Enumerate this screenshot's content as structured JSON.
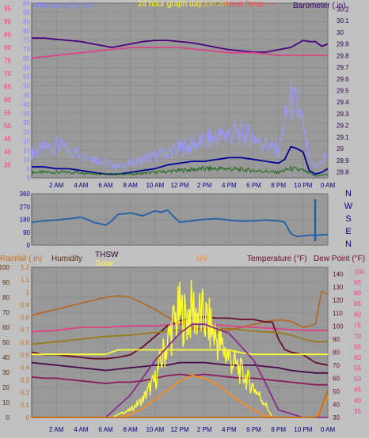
{
  "chart_data": [
    {
      "type": "line",
      "title": "24 hour graph day",
      "title_fragment": "Jun 2n",
      "legend_fragment": "Heat Temp. ---",
      "left_axis_label": "Windspeed (mph)",
      "right_axis_label": "Barometer (.in)",
      "x_ticks": [
        "2 AM",
        "4 AM",
        "6 AM",
        "8 AM",
        "10 AM",
        "12 PM",
        "2 PM",
        "4 PM",
        "6 PM",
        "8 PM",
        "10 PM",
        "0 AM"
      ],
      "x_range_hours": [
        0,
        24
      ],
      "left_ticks": [
        "0",
        "5",
        "10",
        "15",
        "20",
        "25",
        "30",
        "35",
        "40",
        "45",
        "50",
        "55",
        "60",
        "65",
        "70",
        "75",
        "80",
        "85",
        "90",
        "95"
      ],
      "left_ylim": [
        0,
        95
      ],
      "outer_left_ticks": [
        "35",
        "40",
        "45",
        "50",
        "55",
        "60",
        "65",
        "70",
        "75",
        "80",
        "85",
        "90",
        "95"
      ],
      "outer_left_ylim": [
        30,
        97
      ],
      "right_ticks": [
        "28.8",
        "28.9",
        "29",
        "29.1",
        "29.2",
        "29.3",
        "29.4",
        "29.5",
        "29.6",
        "29.7",
        "29.8",
        "29.9",
        "30",
        "30.1",
        "30.2"
      ],
      "right_ylim": [
        28.75,
        30.25
      ],
      "grid": true,
      "series": [
        {
          "name": "Barometer",
          "axis": "right",
          "color": "#4b0082",
          "x": [
            0,
            1,
            2,
            3,
            4,
            5,
            6,
            6.5,
            7,
            8,
            9,
            10,
            11,
            12,
            13,
            14,
            15,
            16,
            17,
            18,
            19,
            20,
            21,
            21.5,
            22,
            22.5,
            23,
            23.5,
            24
          ],
          "y": [
            29.95,
            29.95,
            29.94,
            29.93,
            29.92,
            29.9,
            29.88,
            29.87,
            29.88,
            29.9,
            29.92,
            29.93,
            29.93,
            29.92,
            29.91,
            29.89,
            29.87,
            29.85,
            29.84,
            29.83,
            29.83,
            29.85,
            29.87,
            29.9,
            29.93,
            29.92,
            29.92,
            29.88,
            29.9
          ]
        },
        {
          "name": "",
          "axis": "outer_left",
          "color": "#d8458a",
          "x": [
            0,
            2,
            4,
            6,
            8,
            10,
            12,
            14,
            16,
            18,
            20,
            22,
            24
          ],
          "y": [
            76,
            77,
            78,
            79,
            80,
            80,
            80,
            79,
            78,
            78,
            77,
            77,
            77
          ]
        },
        {
          "name": "Wind Gust",
          "axis": "left",
          "color": "#9999ff",
          "style": "noisy",
          "x": [
            0,
            1,
            2,
            3,
            4,
            5,
            6,
            7,
            8,
            9,
            10,
            11,
            12,
            13,
            14,
            15,
            16,
            17,
            18,
            19,
            20,
            20.5,
            21,
            21.5,
            22,
            22.5,
            23,
            23.5,
            24
          ],
          "y": [
            14,
            16,
            18,
            15,
            13,
            11,
            8,
            6,
            8,
            10,
            12,
            14,
            16,
            18,
            20,
            22,
            24,
            24,
            22,
            18,
            14,
            30,
            42,
            38,
            28,
            10,
            6,
            8,
            14
          ]
        },
        {
          "name": "Wind Speed",
          "axis": "left",
          "color": "#000099",
          "x": [
            0,
            1,
            2,
            3,
            4,
            5,
            6,
            7,
            8,
            9,
            10,
            11,
            12,
            13,
            14,
            15,
            16,
            17,
            18,
            19,
            20,
            20.5,
            21,
            21.5,
            22,
            22.5,
            23,
            23.5,
            24
          ],
          "y": [
            6,
            6,
            5,
            5,
            4,
            3,
            2,
            2,
            3,
            4,
            5,
            7,
            8,
            9,
            9,
            10,
            11,
            11,
            10,
            9,
            8,
            10,
            17,
            16,
            14,
            4,
            2,
            3,
            5
          ]
        },
        {
          "name": "Wind Avg",
          "axis": "left",
          "color": "#1e6b1e",
          "style": "noisy",
          "x": [
            0,
            2,
            4,
            6,
            8,
            10,
            12,
            14,
            16,
            18,
            20,
            21,
            22,
            23,
            24
          ],
          "y": [
            3,
            3,
            3,
            2,
            2,
            3,
            4,
            5,
            5,
            4,
            3,
            5,
            4,
            1,
            2
          ]
        }
      ]
    },
    {
      "type": "line",
      "title": "",
      "y_ticks": [
        "360",
        "270",
        "180",
        "90",
        "0"
      ],
      "ylim": [
        0,
        360
      ],
      "right_labels": [
        "N",
        "W",
        "S",
        "E",
        "N"
      ],
      "x_range_hours": [
        0,
        24
      ],
      "series": [
        {
          "name": "Wind Direction",
          "color": "#1f5fa8",
          "x": [
            0,
            1,
            2,
            3,
            4,
            4.5,
            5,
            6,
            6.5,
            7,
            8,
            9,
            10,
            10.5,
            11,
            11.5,
            12,
            13,
            14,
            15,
            16,
            17,
            18,
            19,
            20,
            20.5,
            21,
            21.5,
            22,
            22.5,
            23,
            24
          ],
          "y": [
            160,
            170,
            175,
            185,
            195,
            180,
            160,
            140,
            170,
            215,
            225,
            205,
            240,
            230,
            245,
            200,
            160,
            170,
            180,
            185,
            175,
            168,
            170,
            175,
            170,
            160,
            80,
            60,
            65,
            70,
            68,
            75
          ]
        }
      ]
    },
    {
      "type": "line",
      "title": "",
      "legend": [
        "Rainfall (.in)",
        "Humidity",
        "THSW",
        "Solar",
        "UV",
        "Temperature (°F)",
        "Dew Point (°F)"
      ],
      "x_ticks": [
        "2 AM",
        "4 AM",
        "6 AM",
        "8 AM",
        "10 AM",
        "12 PM",
        "2 PM",
        "4 PM",
        "6 PM",
        "8 PM",
        "10 PM",
        "0 AM"
      ],
      "x_range_hours": [
        0,
        24
      ],
      "left_outer_ticks": [
        "0",
        "10",
        "20",
        "30",
        "40",
        "50",
        "60",
        "70",
        "80",
        "90",
        "100"
      ],
      "left_outer_ylim": [
        0,
        100
      ],
      "left_inner_ticks": [
        "0",
        "0.1",
        "0.2",
        "0.3",
        "0.4",
        "0.5",
        "0.6",
        "0.7",
        "0.8",
        "0.9",
        "1",
        "1.1",
        "1.2"
      ],
      "left_inner_ylim": [
        0,
        1.2
      ],
      "right_inner_ticks": [
        "30",
        "40",
        "50",
        "60",
        "70",
        "80",
        "90",
        "100",
        "110",
        "120",
        "130",
        "140"
      ],
      "right_inner_ylim": [
        30,
        145
      ],
      "right_outer_ticks": [
        "35",
        "40",
        "45",
        "50",
        "55",
        "60",
        "65",
        "70",
        "75",
        "80",
        "85",
        "90",
        "95",
        "100"
      ],
      "right_outer_ylim": [
        32,
        102
      ],
      "grid": true,
      "series": [
        {
          "name": "Humidity",
          "axis": "left_outer",
          "color": "#b06a2a",
          "x": [
            0,
            1,
            2,
            3,
            4,
            5,
            6,
            7,
            8,
            9,
            10,
            11,
            12,
            12.5,
            13,
            14,
            15,
            16,
            17,
            18,
            19,
            20,
            21,
            22,
            23,
            23.5,
            24
          ],
          "y": [
            68,
            70,
            72,
            74,
            76,
            78,
            80,
            81,
            80,
            76,
            72,
            67,
            62,
            64,
            60,
            58,
            57,
            58,
            60,
            62,
            64,
            65,
            64,
            60,
            62,
            84,
            82
          ]
        },
        {
          "name": "",
          "axis": "left_outer",
          "color": "#e0408a",
          "x": [
            0,
            2,
            4,
            6,
            8,
            10,
            12,
            14,
            16,
            18,
            20,
            22,
            24
          ],
          "y": [
            57,
            58,
            60,
            60,
            61,
            61,
            62,
            62,
            61,
            60,
            59,
            58,
            58
          ]
        },
        {
          "name": "Temperature (°F)",
          "axis": "right_inner",
          "color": "#6b0a2a",
          "x": [
            0,
            1,
            2,
            3,
            4,
            5,
            6,
            7,
            8,
            9,
            10,
            11,
            12,
            13,
            14,
            15,
            16,
            17,
            18,
            19,
            19.5,
            20,
            20.5,
            21,
            22,
            23,
            24
          ],
          "y": [
            80,
            78,
            78,
            77,
            76,
            75,
            75,
            76,
            78,
            84,
            92,
            100,
            104,
            106,
            107,
            106,
            106,
            105,
            105,
            103,
            103,
            90,
            82,
            80,
            78,
            72,
            70
          ]
        },
        {
          "name": "THSW",
          "axis": "right_inner",
          "color": "#4a0a4a",
          "x": [
            0,
            1,
            2,
            3,
            4,
            5,
            6,
            7,
            8,
            9,
            10,
            11,
            12,
            13,
            14,
            15,
            16,
            17,
            18,
            19,
            20,
            21,
            22,
            23,
            24
          ],
          "y": [
            72,
            71,
            70,
            69,
            68,
            67,
            66,
            67,
            68,
            69,
            70,
            70,
            72,
            72,
            72,
            71,
            70,
            70,
            70,
            69,
            68,
            66,
            65,
            64,
            64
          ]
        },
        {
          "name": "Dew Point (°F)",
          "axis": "right_inner",
          "color": "#8a1a5a",
          "x": [
            0,
            1,
            2,
            3,
            4,
            5,
            6,
            7,
            8,
            9,
            10,
            11,
            12,
            13,
            14,
            15,
            16,
            17,
            18,
            19,
            20,
            21,
            22,
            23,
            24
          ],
          "y": [
            61,
            60,
            60,
            59,
            58,
            57,
            56,
            57,
            57,
            58,
            60,
            62,
            63,
            62,
            63,
            62,
            61,
            60,
            60,
            59,
            58,
            57,
            56,
            55,
            55
          ]
        },
        {
          "name": "",
          "axis": "right_inner",
          "color": "#9a7a1a",
          "x": [
            0,
            2,
            4,
            6,
            8,
            10,
            12,
            14,
            16,
            18,
            20,
            21,
            22,
            23,
            24
          ],
          "y": [
            86,
            88,
            90,
            92,
            93,
            95,
            97,
            98,
            98,
            96,
            95,
            93,
            90,
            88,
            88
          ]
        },
        {
          "name": "Solar",
          "axis": "left_outer",
          "color": "#ffff33",
          "style": "noisy",
          "x": [
            0,
            6.5,
            7,
            8,
            9,
            10,
            10.5,
            11,
            11.5,
            12,
            12.5,
            13,
            13.5,
            14,
            14.5,
            15,
            16,
            17,
            18,
            19,
            19.5,
            24
          ],
          "y": [
            0,
            0,
            2,
            5,
            12,
            25,
            38,
            50,
            62,
            70,
            65,
            72,
            68,
            66,
            60,
            52,
            40,
            30,
            20,
            8,
            0,
            0
          ]
        },
        {
          "name": "",
          "axis": "left_outer",
          "color": "#ffff33",
          "x": [
            0,
            6,
            7,
            16,
            17,
            18,
            19,
            20,
            21,
            22,
            23,
            24
          ],
          "y": [
            42,
            42,
            45,
            45,
            43,
            42,
            42,
            42,
            42,
            42,
            42,
            42
          ]
        },
        {
          "name": "",
          "axis": "left_outer",
          "color": "#8a2a8a",
          "x": [
            0,
            2,
            4,
            6,
            8,
            10,
            12,
            13,
            14,
            16,
            18,
            19,
            20,
            22,
            24
          ],
          "y": [
            0,
            0,
            0,
            0,
            15,
            38,
            56,
            62,
            62,
            56,
            38,
            22,
            5,
            0,
            0
          ]
        },
        {
          "name": "UV",
          "axis": "left_outer",
          "color": "#ff8c1a",
          "x": [
            0,
            7,
            8,
            9,
            10,
            11,
            12,
            13,
            14,
            15,
            16,
            17,
            18,
            19,
            20,
            22,
            23,
            23.5,
            24
          ],
          "y": [
            0,
            0,
            2,
            6,
            12,
            18,
            24,
            28,
            26,
            22,
            16,
            10,
            5,
            1,
            0,
            0,
            0,
            6,
            14
          ]
        },
        {
          "name": "Rainfall (.in)",
          "axis": "left_inner",
          "color": "#c07020",
          "x": [
            0,
            23,
            23.3,
            24
          ],
          "y": [
            0,
            0,
            0.02,
            0.22
          ]
        }
      ]
    }
  ]
}
